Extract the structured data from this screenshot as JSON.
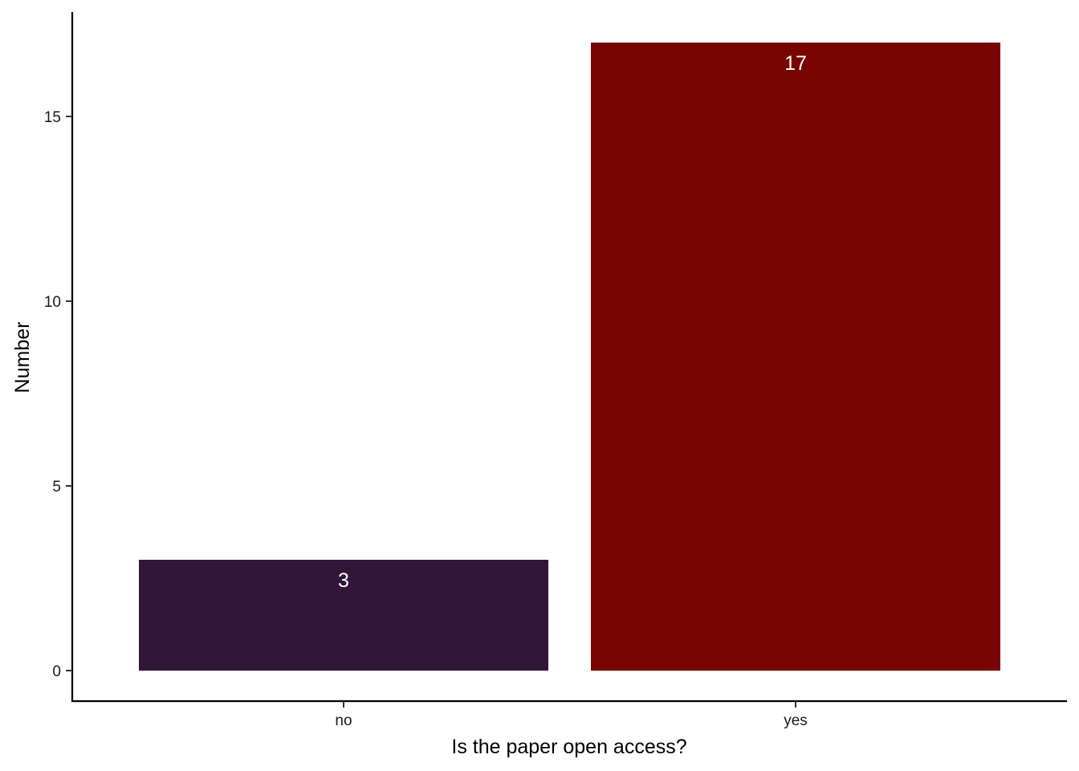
{
  "chart_data": {
    "type": "bar",
    "title": "",
    "xlabel": "Is the paper open access?",
    "ylabel": "Number",
    "categories": [
      "no",
      "yes"
    ],
    "values": [
      3,
      17
    ],
    "data_labels": [
      "3",
      "17"
    ],
    "bar_colors": [
      "#331539",
      "#7a0303"
    ],
    "label_color": "#ffffff",
    "ylim": [
      0,
      17
    ],
    "yticks": [
      0,
      5,
      10,
      15
    ],
    "ytick_labels": [
      "0",
      "5",
      "10",
      "15"
    ],
    "grid": false,
    "legend": "none"
  }
}
